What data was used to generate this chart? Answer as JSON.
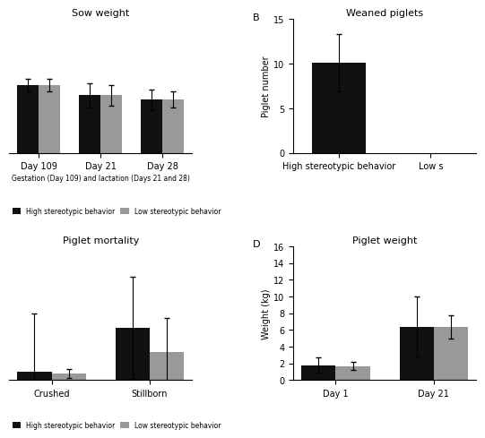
{
  "panel_A": {
    "title": "Sow weight",
    "xlabel": "Gestation (Day 109) and lactation (Days 21 and 28)",
    "categories": [
      "Day 109",
      "Day 21",
      "Day 28"
    ],
    "high_values": [
      263,
      258,
      256
    ],
    "low_values": [
      263,
      258,
      256
    ],
    "high_errors": [
      3,
      6,
      5
    ],
    "low_errors": [
      3,
      5,
      4
    ],
    "ylim_min": 230,
    "ylim_max": 295
  },
  "panel_B": {
    "label": "B",
    "title": "Weaned piglets",
    "ylabel": "Piglet number",
    "categories": [
      "High stereotypic behavior",
      "Low s"
    ],
    "high_values": [
      10.1
    ],
    "high_errors": [
      3.2
    ],
    "ylim": [
      0,
      15
    ],
    "yticks": [
      0,
      5,
      10,
      15
    ]
  },
  "panel_C": {
    "title": "Piglet mortality",
    "ylabel": "",
    "categories": [
      "Crushed",
      "Stillborn"
    ],
    "high_values": [
      0.7,
      4.3
    ],
    "low_values": [
      0.55,
      2.3
    ],
    "high_errors": [
      4.8,
      4.2
    ],
    "low_errors": [
      0.4,
      2.8
    ],
    "ylim": [
      0,
      11
    ],
    "yticks": []
  },
  "panel_D": {
    "label": "D",
    "title": "Piglet weight",
    "ylabel": "Weight (kg)",
    "categories": [
      "Day 1",
      "Day 21"
    ],
    "high_values": [
      1.8,
      6.4
    ],
    "low_values": [
      1.7,
      6.4
    ],
    "high_errors": [
      0.9,
      3.6
    ],
    "low_errors": [
      0.5,
      1.4
    ],
    "ylim": [
      0,
      16
    ],
    "yticks": [
      0,
      2,
      4,
      6,
      8,
      10,
      12,
      14,
      16
    ]
  },
  "colors": {
    "high": "#111111",
    "low": "#999999"
  },
  "legend": {
    "high_label": "High stereotypic behavior",
    "low_label": "Low stereotypic behavior"
  },
  "bar_width": 0.35,
  "font_size": 7,
  "title_font_size": 8
}
